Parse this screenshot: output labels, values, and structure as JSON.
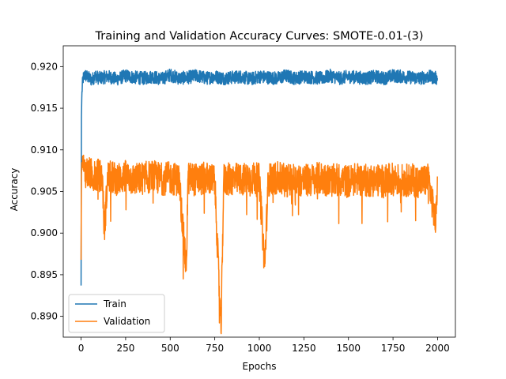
{
  "chart_data": {
    "type": "line",
    "title": "Training and Validation Accuracy Curves: SMOTE-0.01-(3)",
    "xlabel": "Epochs",
    "ylabel": "Accuracy",
    "xlim": [
      -100,
      2100
    ],
    "ylim": [
      0.8875,
      0.9225
    ],
    "x_ticks": [
      0,
      250,
      500,
      750,
      1000,
      1250,
      1500,
      1750,
      2000
    ],
    "y_ticks": [
      0.89,
      0.895,
      0.9,
      0.905,
      0.91,
      0.915,
      0.92
    ],
    "x_tick_labels": [
      "0",
      "250",
      "500",
      "750",
      "1000",
      "1250",
      "1500",
      "1750",
      "2000"
    ],
    "y_tick_labels": [
      "0.890",
      "0.895",
      "0.900",
      "0.905",
      "0.910",
      "0.915",
      "0.920"
    ],
    "legend_position": "lower-left",
    "grid": false,
    "series": [
      {
        "name": "Train",
        "color": "#1f77b4",
        "x": [
          0,
          2,
          5,
          10,
          20,
          40,
          60,
          80,
          100,
          150,
          200,
          250,
          300,
          350,
          400,
          450,
          500,
          550,
          600,
          650,
          700,
          750,
          800,
          850,
          900,
          950,
          1000,
          1050,
          1100,
          1150,
          1200,
          1250,
          1300,
          1350,
          1400,
          1450,
          1500,
          1550,
          1600,
          1650,
          1700,
          1750,
          1800,
          1850,
          1900,
          1950,
          1999
        ],
        "values": [
          0.8937,
          0.914,
          0.917,
          0.9185,
          0.919,
          0.9187,
          0.9184,
          0.9189,
          0.9186,
          0.9188,
          0.9185,
          0.9189,
          0.9187,
          0.9186,
          0.9188,
          0.9185,
          0.919,
          0.9186,
          0.9187,
          0.9189,
          0.9186,
          0.9188,
          0.9186,
          0.9187,
          0.9188,
          0.9185,
          0.9188,
          0.9187,
          0.9186,
          0.9189,
          0.9186,
          0.9188,
          0.9187,
          0.9186,
          0.9189,
          0.9186,
          0.9188,
          0.9187,
          0.9186,
          0.9188,
          0.9186,
          0.9189,
          0.9188,
          0.9187,
          0.9186,
          0.9188,
          0.9186
        ],
        "noise": 0.0008
      },
      {
        "name": "Validation",
        "color": "#ff7f0e",
        "x": [
          0,
          2,
          5,
          10,
          20,
          40,
          60,
          80,
          100,
          120,
          130,
          150,
          200,
          250,
          300,
          350,
          400,
          450,
          500,
          550,
          590,
          600,
          650,
          700,
          750,
          785,
          800,
          850,
          900,
          950,
          1000,
          1030,
          1050,
          1100,
          1150,
          1200,
          1250,
          1300,
          1350,
          1400,
          1450,
          1500,
          1550,
          1600,
          1650,
          1700,
          1750,
          1800,
          1850,
          1900,
          1950,
          1990,
          1999
        ],
        "values": [
          0.8968,
          0.907,
          0.9085,
          0.908,
          0.9075,
          0.9072,
          0.907,
          0.9068,
          0.907,
          0.9066,
          0.9002,
          0.9068,
          0.9065,
          0.9068,
          0.9064,
          0.9066,
          0.9068,
          0.9065,
          0.9066,
          0.9064,
          0.8955,
          0.9066,
          0.9064,
          0.9066,
          0.9063,
          0.888,
          0.9064,
          0.9065,
          0.9064,
          0.9066,
          0.9064,
          0.896,
          0.9064,
          0.9066,
          0.9063,
          0.9065,
          0.9063,
          0.9064,
          0.9066,
          0.9063,
          0.9064,
          0.9062,
          0.9065,
          0.9063,
          0.9064,
          0.9062,
          0.9065,
          0.9063,
          0.9064,
          0.9062,
          0.9064,
          0.901,
          0.9068
        ],
        "noise": 0.002
      }
    ]
  }
}
